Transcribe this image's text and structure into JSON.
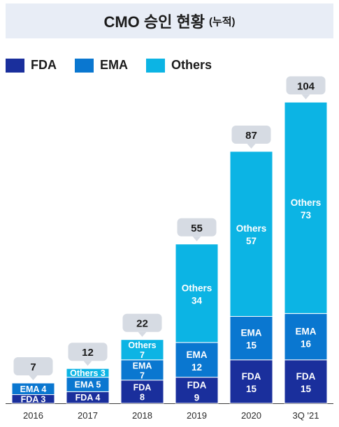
{
  "title": "CMO 승인 현황",
  "title_suffix": "(누적)",
  "colors": {
    "FDA": "#1a2f9c",
    "EMA": "#0a77d0",
    "Others": "#0cb4e4",
    "callout": "#d6dbe3"
  },
  "chart_data": {
    "type": "bar",
    "stacked": true,
    "categories": [
      "2016",
      "2017",
      "2018",
      "2019",
      "2020",
      "3Q '21"
    ],
    "series": [
      {
        "name": "FDA",
        "values": [
          3,
          4,
          8,
          9,
          15,
          15
        ]
      },
      {
        "name": "EMA",
        "values": [
          4,
          5,
          7,
          12,
          15,
          16
        ]
      },
      {
        "name": "Others",
        "values": [
          0,
          3,
          7,
          34,
          57,
          73
        ]
      }
    ],
    "totals": [
      7,
      12,
      22,
      55,
      87,
      104
    ],
    "legend": "top-left",
    "grid": false,
    "title": "CMO 승인 현황 (누적)"
  }
}
